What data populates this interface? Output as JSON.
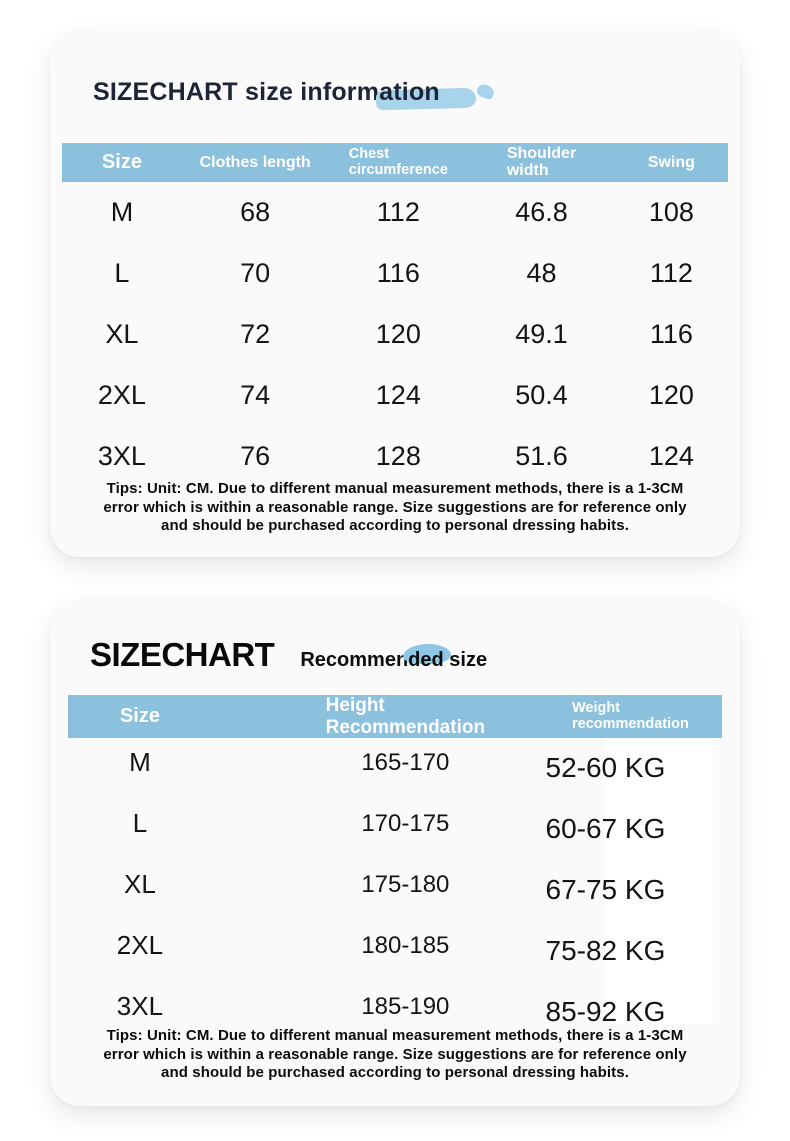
{
  "colors": {
    "header_bar": "#8cc1dd",
    "highlight_brush": "#a7d4eb",
    "highlight_blob": "#8fc6e3",
    "title_navy": "#1e2438"
  },
  "card1": {
    "title_pre": "SIZECHART size inform",
    "title_hl": "ation",
    "table": {
      "columns": [
        "Size",
        "Clothes length",
        "Chest\ncircumference",
        "Shoulder\nwidth",
        "Swing"
      ],
      "rows": [
        [
          "M",
          "68",
          "112",
          "46.8",
          "108"
        ],
        [
          "L",
          "70",
          "116",
          "48",
          "112"
        ],
        [
          "XL",
          "72",
          "120",
          "49.1",
          "116"
        ],
        [
          "2XL",
          "74",
          "124",
          "50.4",
          "120"
        ],
        [
          "3XL",
          "76",
          "128",
          "51.6",
          "124"
        ]
      ]
    },
    "tips": "Tips: Unit: CM. Due to different manual measurement methods, there is a 1-3CM\nerror which is within a reasonable range. Size suggestions are for reference only\nand should be purchased according to personal dressing habits."
  },
  "card2": {
    "title_main": "SIZECHART",
    "subtitle_pre": "Recommen",
    "subtitle_hl": "ded",
    "subtitle_post": " size",
    "table": {
      "columns": [
        "Size",
        "Height\nRecommendation",
        "Weight\nrecommendation"
      ],
      "rows": [
        [
          "M",
          "165-170",
          "52-60 KG"
        ],
        [
          "L",
          "170-175",
          "60-67 KG"
        ],
        [
          "XL",
          "175-180",
          "67-75 KG"
        ],
        [
          "2XL",
          "180-185",
          "75-82 KG"
        ],
        [
          "3XL",
          "185-190",
          "85-92 KG"
        ]
      ]
    },
    "tips": "Tips: Unit: CM. Due to different manual measurement methods, there is a 1-3CM\nerror which is within a reasonable range. Size suggestions are for reference only\nand should be purchased according to personal dressing habits."
  }
}
